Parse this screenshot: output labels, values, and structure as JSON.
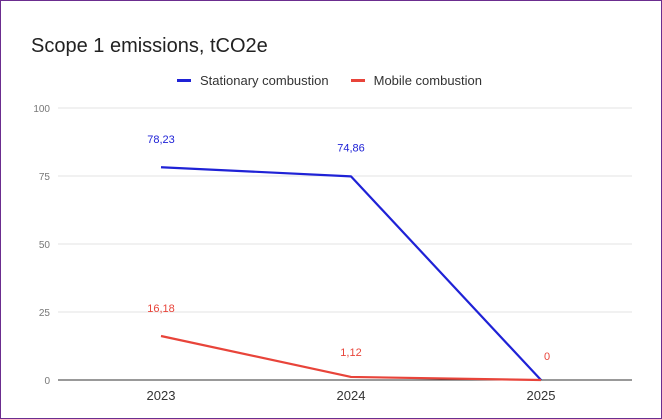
{
  "chart_data": {
    "type": "line",
    "title": "Scope 1 emissions, tCO2e",
    "xlabel": "",
    "ylabel": "",
    "categories": [
      "2023",
      "2024",
      "2025"
    ],
    "ylim": [
      0,
      100
    ],
    "y_ticks": [
      0,
      25,
      50,
      75,
      100
    ],
    "grid": true,
    "legend_position": "top",
    "series": [
      {
        "name": "Stationary combustion",
        "color": "#1f22d6",
        "values": [
          78.23,
          74.86,
          0
        ],
        "labels": [
          "78,23",
          "74,86",
          ""
        ]
      },
      {
        "name": "Mobile combustion",
        "color": "#e8443a",
        "values": [
          16.18,
          1.12,
          0
        ],
        "labels": [
          "16,18",
          "1,12",
          "0"
        ]
      }
    ]
  }
}
